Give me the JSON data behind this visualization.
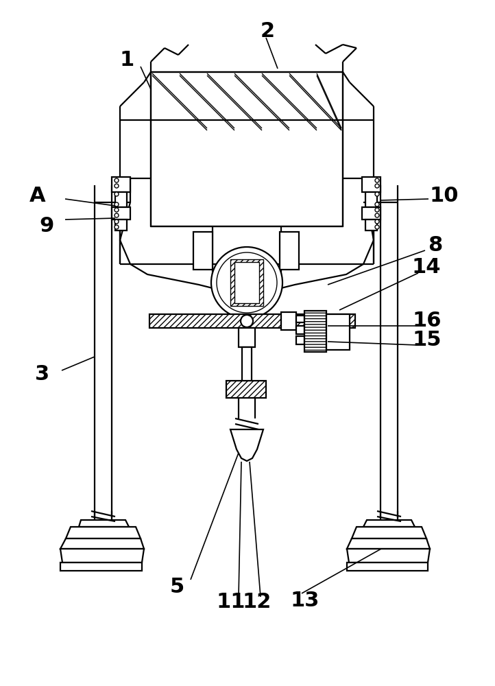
{
  "bg_color": "#ffffff",
  "lw": 1.6,
  "lw_thin": 1.0,
  "lw_label": 1.2,
  "fs": 22,
  "figsize": [
    7.22,
    10.0
  ],
  "dpi": 100
}
